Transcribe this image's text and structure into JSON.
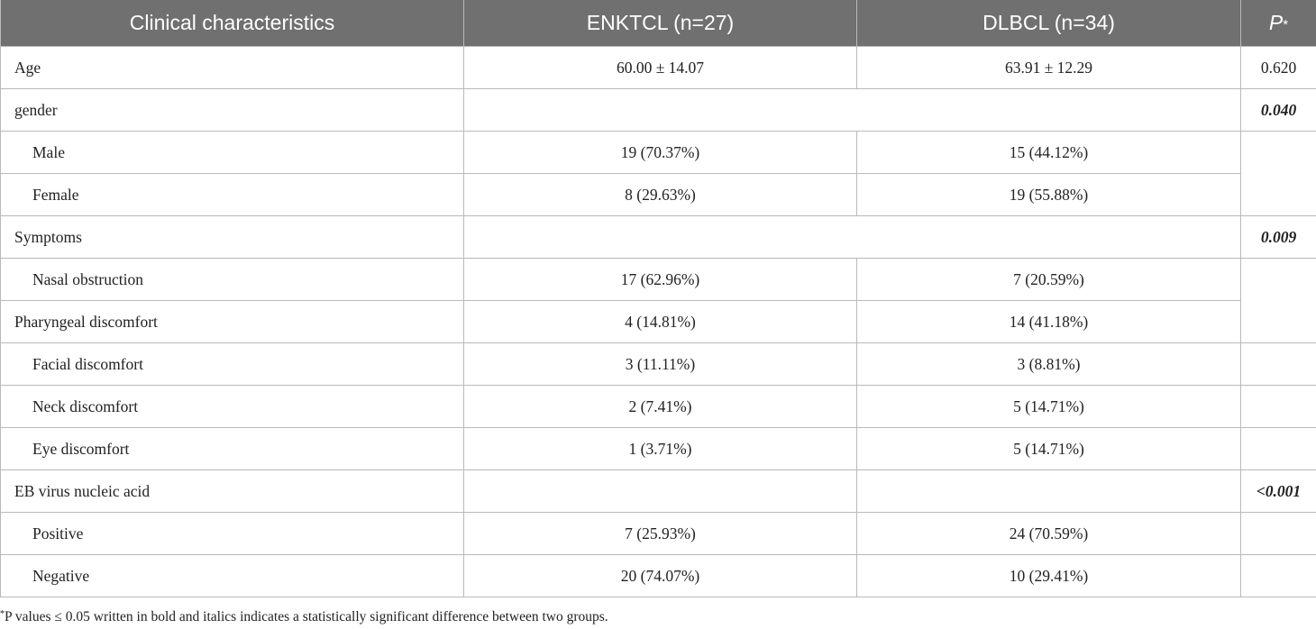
{
  "table": {
    "headers": {
      "characteristics": "Clinical characteristics",
      "enktcl": "ENKTCL (n=27)",
      "dlbcl": "DLBCL (n=34)",
      "p": "P",
      "p_mark": "*"
    },
    "rows": [
      {
        "label": "Age",
        "enktcl": "60.00 ± 14.07",
        "dlbcl": "63.91 ± 12.29",
        "p": "0.620"
      },
      {
        "label": "gender",
        "enktcl": "",
        "dlbcl": "",
        "p": "0.040"
      },
      {
        "label": "Male",
        "enktcl": "19 (70.37%)",
        "dlbcl": "15 (44.12%)",
        "p": ""
      },
      {
        "label": "Female",
        "enktcl": "8 (29.63%)",
        "dlbcl": "19 (55.88%)",
        "p": ""
      },
      {
        "label": "Symptoms",
        "enktcl": "",
        "dlbcl": "",
        "p": "0.009"
      },
      {
        "label": "Nasal obstruction",
        "enktcl": "17 (62.96%)",
        "dlbcl": "7 (20.59%)",
        "p": ""
      },
      {
        "label": "Pharyngeal discomfort",
        "enktcl": "4 (14.81%)",
        "dlbcl": "14 (41.18%)",
        "p": ""
      },
      {
        "label": "Facial discomfort",
        "enktcl": "3 (11.11%)",
        "dlbcl": "3 (8.81%)",
        "p": ""
      },
      {
        "label": "Neck discomfort",
        "enktcl": "2 (7.41%)",
        "dlbcl": "5 (14.71%)",
        "p": ""
      },
      {
        "label": "Eye discomfort",
        "enktcl": "1 (3.71%)",
        "dlbcl": "5 (14.71%)",
        "p": ""
      },
      {
        "label": "EB virus nucleic acid",
        "enktcl": "",
        "dlbcl": "",
        "p": "<0.001"
      },
      {
        "label": "Positive",
        "enktcl": "7 (25.93%)",
        "dlbcl": "24 (70.59%)",
        "p": ""
      },
      {
        "label": "Negative",
        "enktcl": "20 (74.07%)",
        "dlbcl": "10 (29.41%)",
        "p": ""
      }
    ]
  },
  "footnote": {
    "mark": "*",
    "text": "P values ≤ 0.05 written in bold and italics indicates a statistically significant difference between two groups."
  },
  "colors": {
    "header_bg": "#707070",
    "header_text": "#ffffff",
    "border": "#b9b9b9",
    "body_text": "#222222"
  }
}
